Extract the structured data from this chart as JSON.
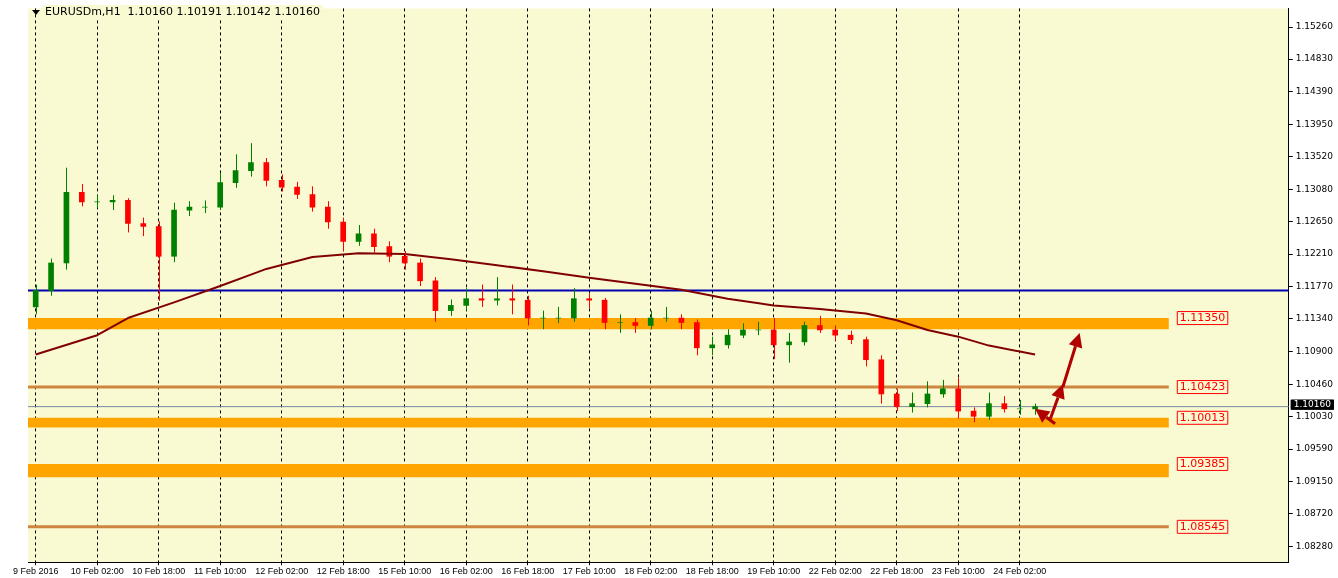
{
  "chart_data": {
    "type": "candlestick",
    "title": "EURUSDm,H1  1.10160 1.10191 1.10142 1.10160",
    "categories": [
      "9 Feb 2016",
      null,
      null,
      null,
      "10 Feb 02:00",
      null,
      null,
      null,
      "10 Feb 18:00",
      null,
      null,
      null,
      "11 Feb 10:00",
      null,
      null,
      null,
      "12 Feb 02:00",
      null,
      null,
      null,
      "12 Feb 18:00",
      null,
      null,
      null,
      "15 Feb 10:00",
      null,
      null,
      null,
      "16 Feb 02:00",
      null,
      null,
      null,
      "16 Feb 18:00",
      null,
      null,
      null,
      "17 Feb 10:00",
      null,
      null,
      null,
      "18 Feb 02:00",
      null,
      null,
      null,
      "18 Feb 18:00",
      null,
      null,
      null,
      "19 Feb 10:00",
      null,
      null,
      null,
      "22 Feb 02:00",
      null,
      null,
      null,
      "22 Feb 18:00",
      null,
      null,
      null,
      "23 Feb 10:00",
      null,
      null,
      null,
      "24 Feb 02:00",
      null,
      null,
      null,
      null,
      null,
      null,
      null,
      null,
      null,
      null,
      null,
      null,
      null,
      null,
      null,
      null,
      null
    ],
    "series": [
      {
        "ohlc": [
          [
            1.115,
            1.118,
            1.114,
            1.1172
          ],
          [
            1.1172,
            1.1215,
            1.1165,
            1.1209
          ],
          [
            1.1209,
            1.1337,
            1.12,
            1.1304
          ],
          [
            1.1304,
            1.1315,
            1.1285,
            1.1291
          ],
          [
            1.1291,
            1.13,
            1.1283,
            1.1291
          ],
          [
            1.1291,
            1.13,
            1.128,
            1.1293
          ],
          [
            1.1293,
            1.1296,
            1.125,
            1.1262
          ],
          [
            1.1262,
            1.127,
            1.1245,
            1.1258
          ],
          [
            1.1258,
            1.1265,
            1.1158,
            1.1218
          ],
          [
            1.1218,
            1.129,
            1.121,
            1.128
          ],
          [
            1.128,
            1.1292,
            1.1272,
            1.1284
          ],
          [
            1.1284,
            1.1293,
            1.1276,
            1.1284
          ],
          [
            1.1284,
            1.133,
            1.128,
            1.1317
          ],
          [
            1.1317,
            1.1355,
            1.131,
            1.1333
          ],
          [
            1.1333,
            1.137,
            1.1325,
            1.1344
          ],
          [
            1.1344,
            1.135,
            1.1312,
            1.132
          ],
          [
            1.132,
            1.1328,
            1.1305,
            1.1311
          ],
          [
            1.1311,
            1.1318,
            1.1295,
            1.1301
          ],
          [
            1.1301,
            1.1312,
            1.1278,
            1.1284
          ],
          [
            1.1284,
            1.1292,
            1.1255,
            1.1264
          ],
          [
            1.1264,
            1.127,
            1.1225,
            1.1238
          ],
          [
            1.1238,
            1.126,
            1.1232,
            1.1248
          ],
          [
            1.1248,
            1.1255,
            1.1222,
            1.1231
          ],
          [
            1.1231,
            1.1238,
            1.121,
            1.1218
          ],
          [
            1.1218,
            1.1225,
            1.12,
            1.1209
          ],
          [
            1.1209,
            1.1215,
            1.1178,
            1.1185
          ],
          [
            1.1185,
            1.119,
            1.113,
            1.1145
          ],
          [
            1.1145,
            1.116,
            1.1138,
            1.1152
          ],
          [
            1.1152,
            1.1175,
            1.1145,
            1.1161
          ],
          [
            1.1161,
            1.118,
            1.115,
            1.1159
          ],
          [
            1.1159,
            1.119,
            1.1152,
            1.1161
          ],
          [
            1.1161,
            1.118,
            1.114,
            1.1159
          ],
          [
            1.1159,
            1.1165,
            1.1125,
            1.1135
          ],
          [
            1.1135,
            1.1145,
            1.112,
            1.1135
          ],
          [
            1.1135,
            1.115,
            1.1128,
            1.1135
          ],
          [
            1.1135,
            1.1175,
            1.113,
            1.1161
          ],
          [
            1.1161,
            1.1168,
            1.1148,
            1.1159
          ],
          [
            1.1159,
            1.1162,
            1.112,
            1.1129
          ],
          [
            1.1129,
            1.114,
            1.1115,
            1.1129
          ],
          [
            1.1129,
            1.1135,
            1.1115,
            1.1125
          ],
          [
            1.1125,
            1.1145,
            1.112,
            1.1135
          ],
          [
            1.1135,
            1.115,
            1.113,
            1.1135
          ],
          [
            1.1135,
            1.114,
            1.112,
            1.1129
          ],
          [
            1.1129,
            1.1133,
            1.1085,
            1.1095
          ],
          [
            1.1095,
            1.111,
            1.1085,
            1.1099
          ],
          [
            1.1099,
            1.112,
            1.1094,
            1.1112
          ],
          [
            1.1112,
            1.1128,
            1.1108,
            1.1119
          ],
          [
            1.1119,
            1.113,
            1.1112,
            1.1119
          ],
          [
            1.1119,
            1.1135,
            1.108,
            1.1099
          ],
          [
            1.1099,
            1.1115,
            1.1075,
            1.1103
          ],
          [
            1.1103,
            1.113,
            1.1098,
            1.1125
          ],
          [
            1.1125,
            1.1138,
            1.1115,
            1.1119
          ],
          [
            1.1119,
            1.1125,
            1.1105,
            1.1112
          ],
          [
            1.1112,
            1.1118,
            1.11,
            1.1106
          ],
          [
            1.1106,
            1.111,
            1.107,
            1.1079
          ],
          [
            1.1079,
            1.1085,
            1.102,
            1.1033
          ],
          [
            1.1033,
            1.104,
            1.101,
            1.1016
          ],
          [
            1.1016,
            1.1035,
            1.1008,
            1.102
          ],
          [
            1.102,
            1.105,
            1.1015,
            1.1033
          ],
          [
            1.1033,
            1.1052,
            1.1028,
            1.104
          ],
          [
            1.104,
            1.1055,
            1.1,
            1.101
          ],
          [
            1.101,
            1.1015,
            1.0995,
            1.1003
          ],
          [
            1.1003,
            1.1035,
            1.0998,
            1.102
          ],
          [
            1.102,
            1.103,
            1.1008,
            1.1013
          ],
          [
            1.1013,
            1.1025,
            1.1005,
            1.1013
          ],
          [
            1.1013,
            1.102,
            1.1005,
            1.1016
          ],
          null,
          null,
          null,
          null,
          null,
          null,
          null,
          null,
          null,
          null,
          null,
          null,
          null,
          null,
          null,
          null
        ],
        "colors": [
          "#008000",
          "#008000",
          "#008000",
          "#ff0000",
          "#008000",
          "#008000",
          "#ff0000",
          "#ff0000",
          "#ff0000",
          "#008000",
          "#008000",
          "#008000",
          "#008000",
          "#008000",
          "#008000",
          "#ff0000",
          "#ff0000",
          "#ff0000",
          "#ff0000",
          "#ff0000",
          "#ff0000",
          "#008000",
          "#ff0000",
          "#ff0000",
          "#ff0000",
          "#ff0000",
          "#ff0000",
          "#008000",
          "#008000",
          "#ff0000",
          "#008000",
          "#ff0000",
          "#ff0000",
          "#008000",
          "#008000",
          "#008000",
          "#ff0000",
          "#ff0000",
          "#008000",
          "#ff0000",
          "#008000",
          "#008000",
          "#ff0000",
          "#ff0000",
          "#008000",
          "#008000",
          "#008000",
          "#008000",
          "#ff0000",
          "#008000",
          "#008000",
          "#ff0000",
          "#ff0000",
          "#ff0000",
          "#ff0000",
          "#ff0000",
          "#ff0000",
          "#008000",
          "#008000",
          "#008000",
          "#ff0000",
          "#ff0000",
          "#008000",
          "#ff0000",
          "#008000",
          "#008000",
          null,
          null,
          null,
          null,
          null,
          null,
          null,
          null,
          null,
          null,
          null,
          null,
          null,
          null,
          null,
          null
        ]
      },
      {
        "type": "line",
        "color": "#800000",
        "values": [
          1.1086,
          null,
          null,
          null,
          1.1112,
          null,
          1.1135,
          null,
          null,
          1.1156,
          null,
          null,
          1.1178,
          null,
          null,
          1.1201,
          null,
          null,
          1.1217,
          null,
          null,
          1.1222,
          null,
          null,
          1.1221,
          null,
          null,
          1.1214,
          null,
          null,
          1.1206,
          null,
          null,
          1.1198,
          null,
          null,
          1.1189,
          null,
          null,
          1.1181,
          null,
          null,
          1.1173,
          null,
          null,
          1.1161,
          null,
          null,
          1.1152,
          null,
          null,
          1.1147,
          null,
          null,
          1.1141,
          null,
          1.1132,
          null,
          1.1119,
          null,
          1.111,
          null,
          1.1098,
          null,
          null,
          1.1086,
          null,
          null,
          null,
          null,
          null,
          null,
          null,
          null,
          null,
          null,
          null,
          null,
          null,
          null,
          null,
          null
        ]
      }
    ],
    "ylim": [
      1.0807,
      1.1551
    ],
    "yticks": [
      {
        "value": 1.1526,
        "label": "1.15260"
      },
      {
        "value": 1.1483,
        "label": "1.14830"
      },
      {
        "value": 1.1439,
        "label": "1.14390"
      },
      {
        "value": 1.1395,
        "label": "1.13950"
      },
      {
        "value": 1.1352,
        "label": "1.13520"
      },
      {
        "value": 1.1308,
        "label": "1.13080"
      },
      {
        "value": 1.1265,
        "label": "1.12650"
      },
      {
        "value": 1.1221,
        "label": "1.12210"
      },
      {
        "value": 1.1177,
        "label": "1.11770"
      },
      {
        "value": 1.1134,
        "label": "1.11340"
      },
      {
        "value": 1.109,
        "label": "1.10900"
      },
      {
        "value": 1.1046,
        "label": "1.10460"
      },
      {
        "value": 1.1003,
        "label": "1.10030"
      },
      {
        "value": 1.0959,
        "label": "1.09590"
      },
      {
        "value": 1.0915,
        "label": "1.09150"
      },
      {
        "value": 1.0872,
        "label": "1.08720"
      },
      {
        "value": 1.0828,
        "label": "1.08280"
      }
    ],
    "grid": "x",
    "marker": "none",
    "line_style": "solid",
    "bands": [
      {
        "axis": "y",
        "from": 1.112,
        "to": 1.1135,
        "label": "1.11350",
        "color": "#ffa500"
      },
      {
        "axis": "y",
        "from": 1.0988,
        "to": 1.1001,
        "label": "1.10013",
        "color": "#ffa500"
      },
      {
        "axis": "y",
        "from": 1.0921,
        "to": 1.0939,
        "label": "1.09385",
        "color": "#ffa500"
      }
    ],
    "ref_lines": [
      {
        "axis": "y",
        "value": 1.1172,
        "color": "#0000b0",
        "line_style": "solid"
      },
      {
        "axis": "y",
        "value": 1.10423,
        "label": "1.10423",
        "color": "#cd853f"
      },
      {
        "axis": "y",
        "value": 1.08545,
        "label": "1.08545",
        "color": "#cd853f"
      },
      {
        "axis": "y",
        "value": 1.1016,
        "label": "1.10160",
        "color": "#7788a0",
        "line_style": "solid"
      }
    ]
  }
}
